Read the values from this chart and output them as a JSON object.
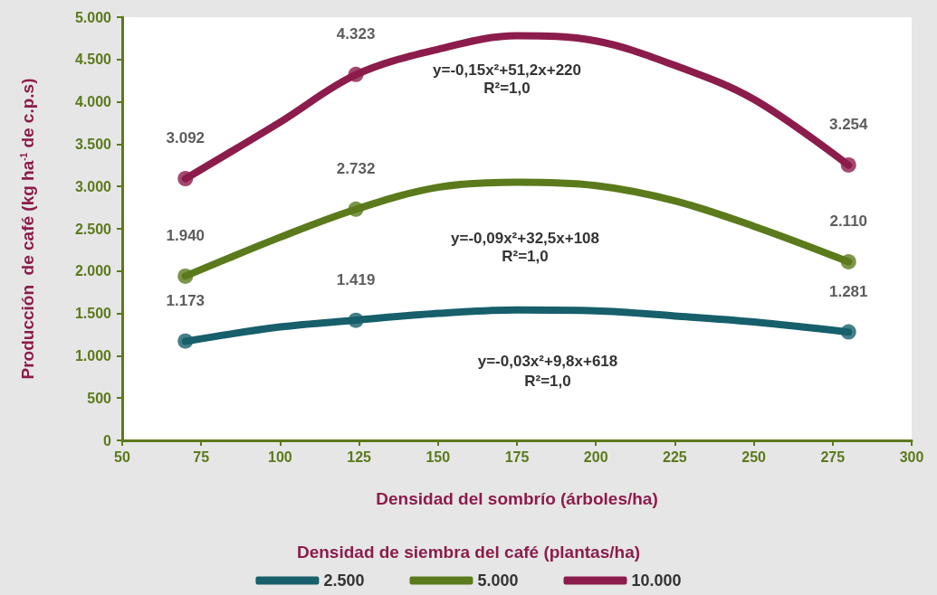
{
  "chart_data": {
    "type": "line",
    "xlabel": "Densidad del sombrío (árboles/ha)",
    "ylabel": "Producción  de café (kg ha$^{-1}$ de c.p.s)",
    "legend_title": "Densidad de siembra del café (plantas/ha)",
    "legend": "bottom",
    "grid": false,
    "marker": "circle",
    "line_style": "solid",
    "xlim": [
      50,
      300
    ],
    "xticks": [
      50,
      75,
      100,
      125,
      150,
      175,
      200,
      225,
      250,
      275,
      300
    ],
    "ylim": [
      0,
      5000
    ],
    "yticks": [
      0,
      500,
      {
        "value": 1000,
        "label": "1.000"
      },
      {
        "value": 1500,
        "label": "1.500"
      },
      {
        "value": 2000,
        "label": "2.000"
      },
      {
        "value": 2500,
        "label": "2.500"
      },
      {
        "value": 3000,
        "label": "3.000"
      },
      {
        "value": 3500,
        "label": "3.500"
      },
      {
        "value": 4000,
        "label": "4.000"
      },
      {
        "value": 4500,
        "label": "4.500"
      },
      {
        "value": 5000,
        "label": "5.000"
      }
    ],
    "series": [
      {
        "name": "2.500",
        "color": "#165f6b",
        "marker": "none",
        "x": [
          70,
          100,
          124,
          150,
          175,
          200,
          225,
          250,
          280
        ],
        "values": [
          1170,
          1340,
          1420,
          1500,
          1540,
          1530,
          1470,
          1400,
          1280
        ]
      },
      {
        "name": "5.000",
        "color": "#5b7a1b",
        "marker": "none",
        "x": [
          70,
          100,
          124,
          150,
          175,
          200,
          225,
          250,
          280
        ],
        "values": [
          1940,
          2400,
          2730,
          2990,
          3050,
          3010,
          2830,
          2530,
          2110
        ]
      },
      {
        "name": "10.000",
        "color": "#8c1c4b",
        "marker": "none",
        "x": [
          70,
          100,
          124,
          150,
          175,
          200,
          225,
          250,
          280
        ],
        "values": [
          3090,
          3760,
          4320,
          4620,
          4780,
          4720,
          4430,
          4030,
          3250
        ]
      },
      {
        "type": "scatter",
        "color": "#165f6b",
        "x": [
          70,
          124,
          280
        ],
        "values": [
          1173,
          1419,
          1281
        ],
        "value_labels": [
          "1.173",
          "1.419",
          "1.281"
        ]
      },
      {
        "type": "scatter",
        "color": "#5b7a1b",
        "x": [
          70,
          124,
          280
        ],
        "values": [
          1940,
          2732,
          2110
        ],
        "value_labels": [
          "1.940",
          "2.732",
          "2.110"
        ]
      },
      {
        "type": "scatter",
        "color": "#8c1c4b",
        "x": [
          70,
          124,
          280
        ],
        "values": [
          3092,
          4323,
          3254
        ],
        "value_labels": [
          "3.092",
          "4.323",
          "3.254"
        ]
      }
    ],
    "annotations": [
      "y=-0,15x²+51,2x+220",
      "R²=1,0",
      "y=-0,09x²+32,5x+108",
      "R²=1,0",
      "y=-0,03x²+9,8x+618",
      "R²=1,0"
    ]
  }
}
